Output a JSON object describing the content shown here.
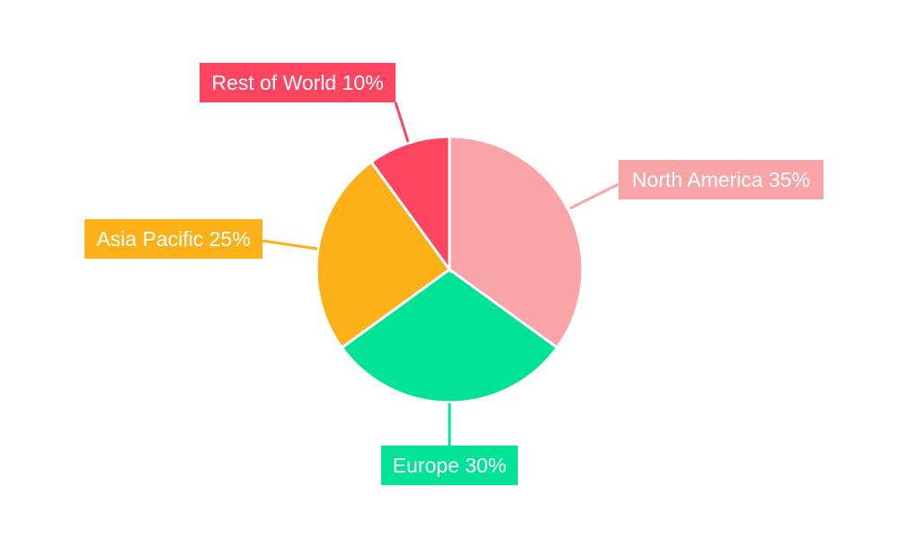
{
  "chart_data": {
    "type": "pie",
    "title": "",
    "categories": [
      "North America",
      "Europe",
      "Asia Pacific",
      "Rest of World"
    ],
    "values": [
      35,
      30,
      25,
      10
    ],
    "labels": [
      "North America 35%",
      "Europe 30%",
      "Asia Pacific 25%",
      "Rest of World 10%"
    ],
    "colors": [
      "#F9A4A6",
      "#00E396",
      "#FEB019",
      "#FF4560"
    ],
    "start_angle": "top",
    "direction": "clockwise",
    "legend": "none"
  }
}
